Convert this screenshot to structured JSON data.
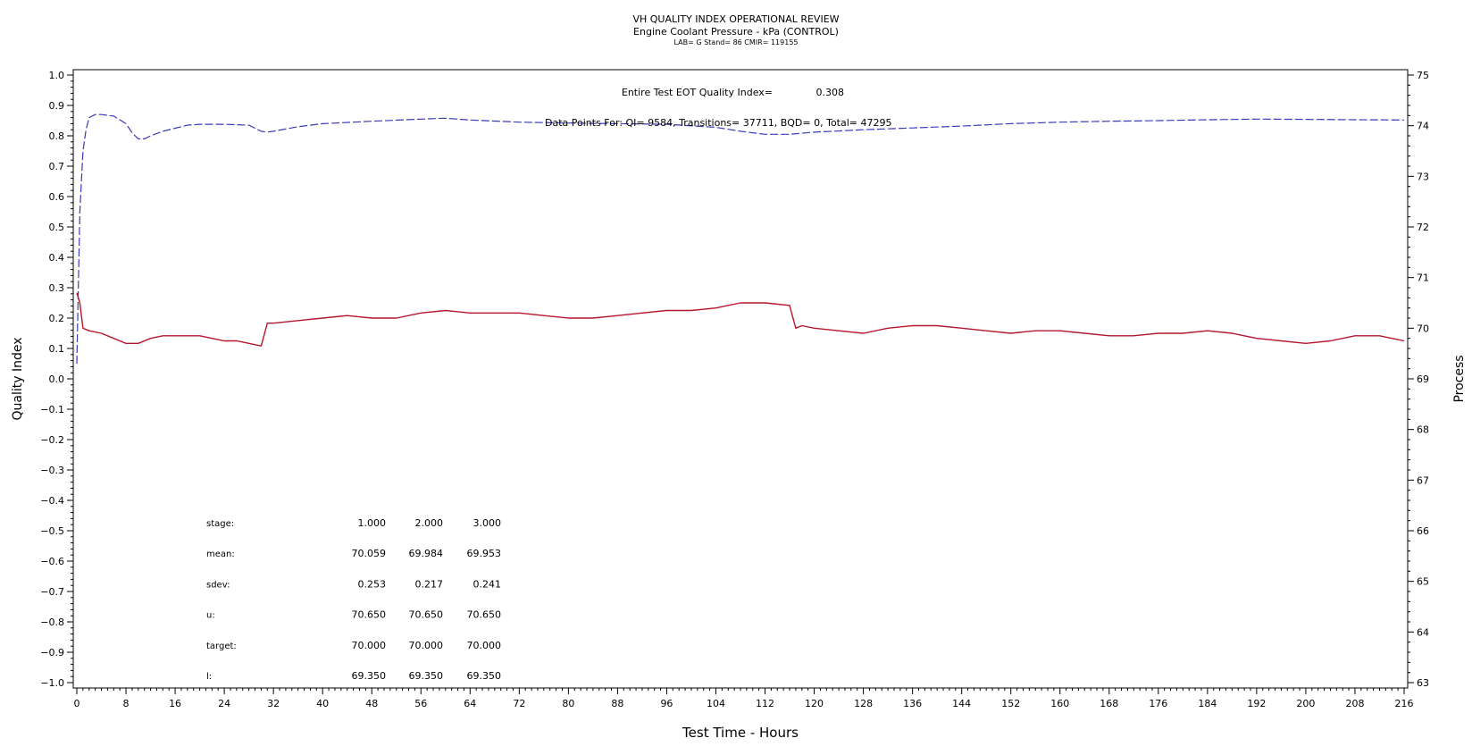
{
  "chart_data": {
    "type": "line",
    "title": "VH QUALITY INDEX OPERATIONAL REVIEW",
    "subtitle": "Engine Coolant Pressure - kPa (CONTROL)",
    "subtitle2": "LAB= G Stand= 86 CMIR= 119155",
    "xlabel": "Test Time - Hours",
    "ylabel_left": "Quality Index",
    "ylabel_right": "Process",
    "xlim": [
      0,
      216
    ],
    "ylim_left": [
      -1.0,
      1.0
    ],
    "ylim_right": [
      63,
      75
    ],
    "x_ticks": [
      0,
      8,
      16,
      24,
      32,
      40,
      48,
      56,
      64,
      72,
      80,
      88,
      96,
      104,
      112,
      120,
      128,
      136,
      144,
      152,
      160,
      168,
      176,
      184,
      192,
      200,
      208,
      216
    ],
    "y_left_ticks": [
      "1.0",
      "0.9",
      "0.8",
      "0.7",
      "0.6",
      "0.5",
      "0.4",
      "0.3",
      "0.2",
      "0.1",
      "0.0",
      "-0.1",
      "-0.2",
      "-0.3",
      "-0.4",
      "-0.5",
      "-0.6",
      "-0.7",
      "-0.8",
      "-0.9",
      "-1.0"
    ],
    "y_right_ticks": [
      63,
      64,
      65,
      66,
      67,
      68,
      69,
      70,
      71,
      72,
      73,
      74,
      75
    ],
    "grid": false,
    "series": [
      {
        "axis": "left",
        "style": "dashed",
        "color": "#3b3bb8",
        "x": [
          0,
          0.5,
          1,
          1.5,
          2,
          3,
          4,
          6,
          8,
          9,
          10,
          11,
          12,
          14,
          16,
          18,
          20,
          24,
          28,
          29,
          30,
          31,
          32,
          36,
          40,
          48,
          56,
          60,
          64,
          72,
          80,
          88,
          96,
          104,
          108,
          112,
          116,
          120,
          128,
          136,
          144,
          152,
          160,
          168,
          176,
          184,
          192,
          200,
          208,
          216
        ],
        "y": [
          0.05,
          0.55,
          0.75,
          0.82,
          0.86,
          0.87,
          0.87,
          0.865,
          0.84,
          0.81,
          0.79,
          0.79,
          0.8,
          0.815,
          0.825,
          0.835,
          0.838,
          0.838,
          0.835,
          0.825,
          0.815,
          0.812,
          0.815,
          0.83,
          0.84,
          0.848,
          0.855,
          0.858,
          0.852,
          0.845,
          0.842,
          0.84,
          0.838,
          0.828,
          0.815,
          0.805,
          0.805,
          0.812,
          0.82,
          0.826,
          0.832,
          0.84,
          0.845,
          0.848,
          0.85,
          0.853,
          0.855,
          0.854,
          0.853,
          0.852
        ]
      },
      {
        "axis": "right",
        "style": "solid",
        "color": "#b5162e",
        "x": [
          0,
          0.5,
          1,
          2,
          4,
          6,
          8,
          10,
          12,
          14,
          16,
          18,
          20,
          22,
          24,
          26,
          28,
          30,
          31,
          32,
          36,
          40,
          44,
          48,
          52,
          56,
          60,
          64,
          68,
          72,
          76,
          80,
          84,
          88,
          92,
          96,
          100,
          104,
          108,
          112,
          116,
          117,
          118,
          120,
          124,
          128,
          132,
          136,
          140,
          144,
          148,
          152,
          156,
          160,
          164,
          168,
          172,
          176,
          180,
          184,
          188,
          192,
          196,
          200,
          204,
          208,
          212,
          216
        ],
        "y": [
          70.7,
          70.5,
          70.0,
          69.95,
          69.9,
          69.8,
          69.7,
          69.7,
          69.8,
          69.85,
          69.85,
          69.85,
          69.85,
          69.8,
          69.75,
          69.75,
          69.7,
          69.65,
          70.1,
          70.1,
          70.15,
          70.2,
          70.25,
          70.2,
          70.2,
          70.3,
          70.35,
          70.3,
          70.3,
          70.3,
          70.25,
          70.2,
          70.2,
          70.25,
          70.3,
          70.35,
          70.35,
          70.4,
          70.5,
          70.5,
          70.45,
          70.0,
          70.05,
          70.0,
          69.95,
          69.9,
          70.0,
          70.05,
          70.05,
          70.0,
          69.95,
          69.9,
          69.95,
          69.95,
          69.9,
          69.85,
          69.85,
          69.9,
          69.9,
          69.95,
          69.9,
          69.8,
          69.75,
          69.7,
          69.75,
          69.85,
          69.85,
          69.75
        ]
      }
    ],
    "annotations": {
      "eot_label": "Entire Test EOT Quality Index=",
      "eot_value": "0.308",
      "data_points": "Data Points For: QI= 9584, Transitions= 37711, BQD= 0, Total= 47295"
    },
    "stats_table": {
      "rows": [
        {
          "label": "stage:",
          "values": [
            "1.000",
            "2.000",
            "3.000"
          ]
        },
        {
          "label": "mean:",
          "values": [
            "70.059",
            "69.984",
            "69.953"
          ]
        },
        {
          "label": "sdev:",
          "values": [
            "0.253",
            "0.217",
            "0.241"
          ]
        },
        {
          "label": "u:",
          "values": [
            "70.650",
            "70.650",
            "70.650"
          ]
        },
        {
          "label": "target:",
          "values": [
            "70.000",
            "70.000",
            "70.000"
          ]
        },
        {
          "label": "l:",
          "values": [
            "69.350",
            "69.350",
            "69.350"
          ]
        }
      ]
    }
  }
}
